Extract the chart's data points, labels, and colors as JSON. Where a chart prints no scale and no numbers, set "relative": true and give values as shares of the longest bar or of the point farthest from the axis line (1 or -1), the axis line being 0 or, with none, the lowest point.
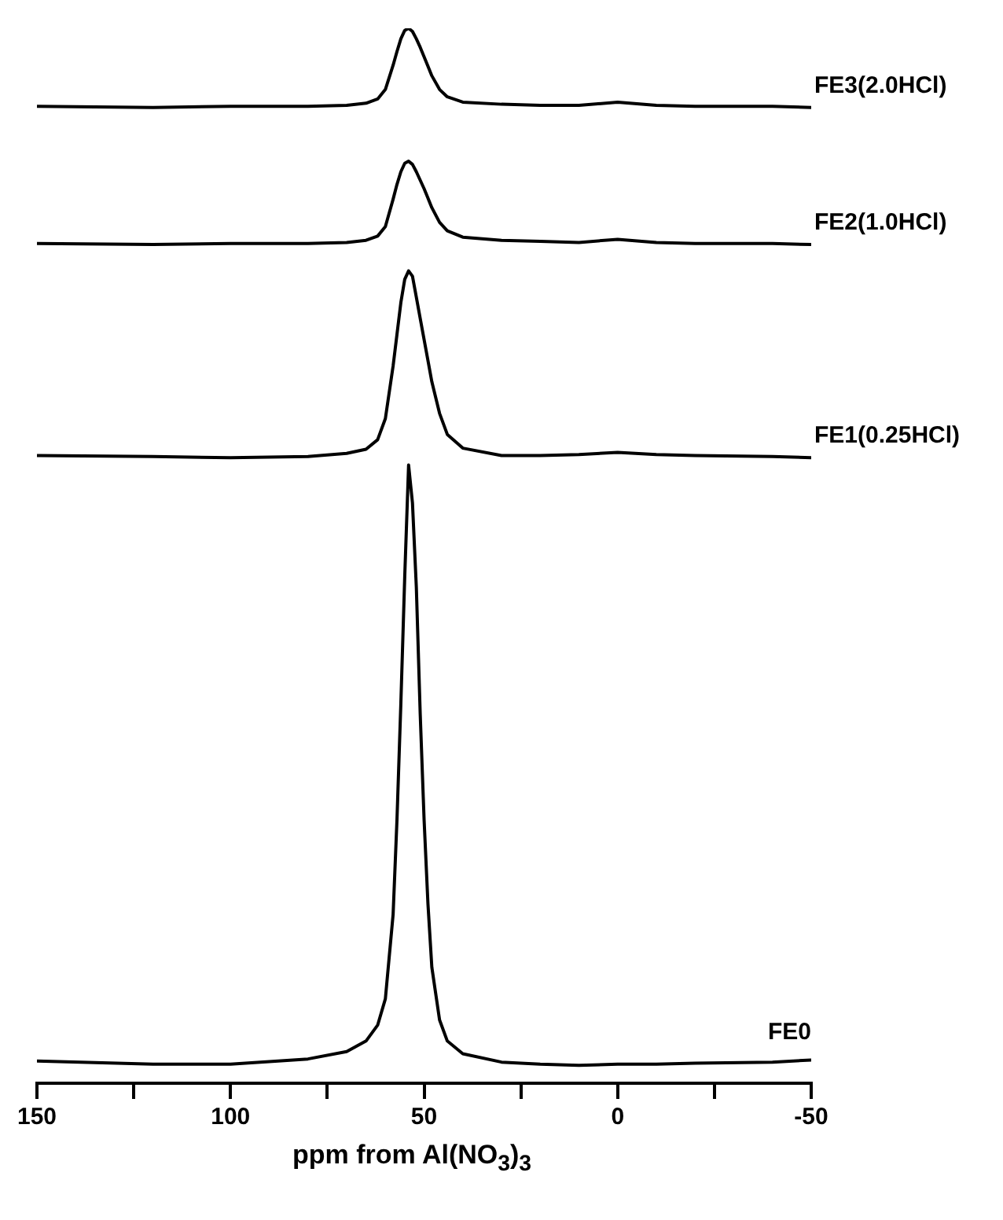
{
  "chart_data": {
    "type": "line",
    "relative": true,
    "xlabel": "ppm from Al(NO$_{3}$)$_{3}$",
    "x": [
      150,
      120,
      100,
      80,
      70,
      65,
      62,
      60,
      58,
      57,
      56,
      55,
      54,
      53,
      52,
      51,
      50,
      49,
      48,
      46,
      44,
      40,
      30,
      20,
      10,
      0,
      -10,
      -20,
      -40,
      -50
    ],
    "xlim": [
      150,
      -50
    ],
    "xticks": [
      150,
      {
        "value": 125,
        "label": null
      },
      100,
      {
        "value": 75,
        "label": null
      },
      50,
      {
        "value": 25,
        "label": null
      },
      0,
      {
        "value": -25,
        "label": null
      },
      -50
    ],
    "grid": false,
    "legend": false,
    "marker": "none",
    "line_style": "solid",
    "series": [
      {
        "name": "FE0",
        "color": "#000000",
        "values": [
          0.021,
          0.018,
          0.018,
          0.023,
          0.03,
          0.04,
          0.055,
          0.08,
          0.16,
          0.25,
          0.36,
          0.48,
          0.586,
          0.55,
          0.47,
          0.35,
          0.25,
          0.17,
          0.11,
          0.06,
          0.04,
          0.028,
          0.02,
          0.018,
          0.017,
          0.018,
          0.018,
          0.019,
          0.02,
          0.022
        ]
      },
      {
        "name": "FE1(0.25HCl)",
        "color": "#000000",
        "values": [
          0.595,
          0.594,
          0.593,
          0.594,
          0.597,
          0.601,
          0.61,
          0.63,
          0.68,
          0.71,
          0.74,
          0.762,
          0.77,
          0.765,
          0.745,
          0.725,
          0.705,
          0.685,
          0.665,
          0.635,
          0.615,
          0.602,
          0.595,
          0.595,
          0.596,
          0.598,
          0.596,
          0.595,
          0.594,
          0.593
        ]
      },
      {
        "name": "FE2(1.0HCl)",
        "color": "#000000",
        "values": [
          0.796,
          0.795,
          0.796,
          0.796,
          0.797,
          0.799,
          0.803,
          0.812,
          0.838,
          0.852,
          0.864,
          0.872,
          0.874,
          0.871,
          0.864,
          0.856,
          0.848,
          0.839,
          0.83,
          0.816,
          0.808,
          0.802,
          0.799,
          0.798,
          0.797,
          0.8,
          0.797,
          0.796,
          0.796,
          0.795
        ]
      },
      {
        "name": "FE3(2.0HCl)",
        "color": "#000000",
        "values": [
          0.926,
          0.925,
          0.926,
          0.926,
          0.927,
          0.929,
          0.933,
          0.942,
          0.965,
          0.978,
          0.99,
          0.998,
          1.0,
          0.997,
          0.99,
          0.982,
          0.973,
          0.964,
          0.955,
          0.942,
          0.935,
          0.93,
          0.928,
          0.927,
          0.927,
          0.93,
          0.927,
          0.926,
          0.926,
          0.925
        ]
      }
    ]
  }
}
